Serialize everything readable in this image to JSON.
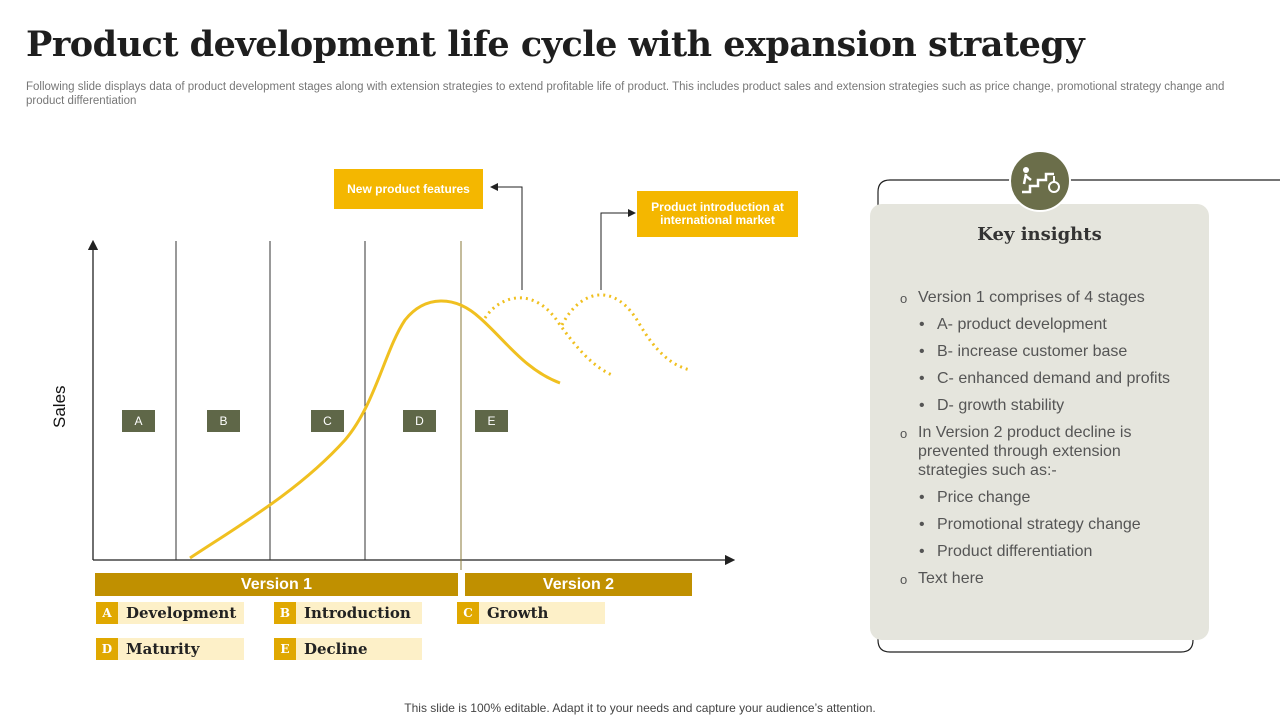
{
  "header": {
    "title": "Product development life cycle with expansion strategy",
    "subtitle": "Following slide displays data of product development stages along with extension strategies to extend profitable life of product. This includes product sales and extension strategies such as price change, promotional strategy change and product differentiation"
  },
  "diagram": {
    "axis_label": "Sales",
    "stages": [
      "A",
      "B",
      "C",
      "D",
      "E"
    ],
    "callouts": [
      "New product features",
      "Product introduction at international market"
    ],
    "versions": [
      "Version 1",
      "Version 2"
    ]
  },
  "legend": [
    {
      "letter": "A",
      "label": "Development"
    },
    {
      "letter": "B",
      "label": "Introduction"
    },
    {
      "letter": "C",
      "label": "Growth"
    },
    {
      "letter": "D",
      "label": "Maturity"
    },
    {
      "letter": "E",
      "label": "Decline"
    }
  ],
  "insights": {
    "title": "Key insights",
    "items": [
      {
        "text": "Version 1 comprises of 4 stages",
        "sub": [
          "A- product development",
          "B- increase customer base",
          "C- enhanced demand and profits",
          "D- growth stability"
        ]
      },
      {
        "text": "In Version 2 product decline is prevented through extension strategies such as:-",
        "sub": [
          "Price change",
          "Promotional strategy change",
          "Product differentiation"
        ]
      },
      {
        "text": "Text here",
        "sub": []
      }
    ]
  },
  "footer": "This slide is 100% editable. Adapt it to your needs and capture your audience’s attention."
}
